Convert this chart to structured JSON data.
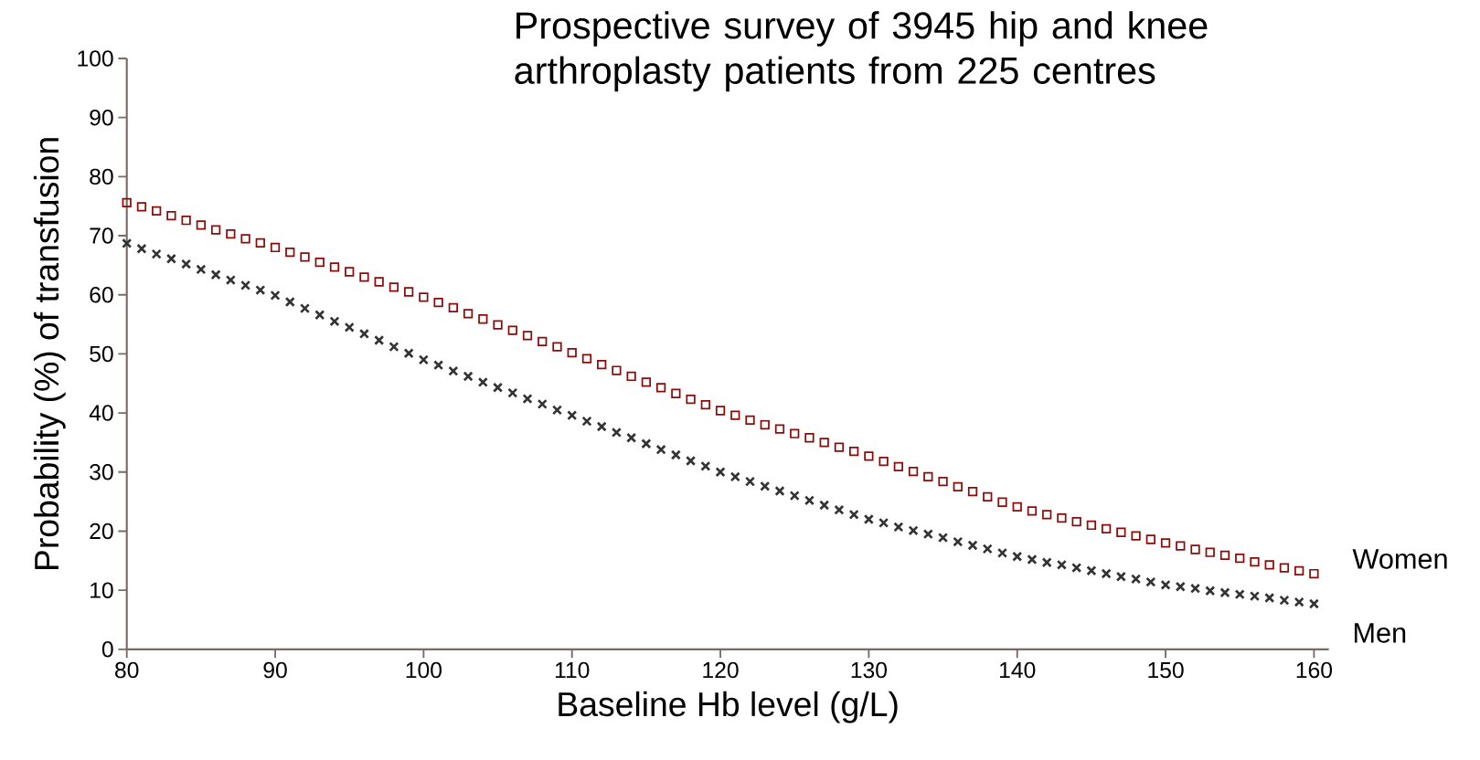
{
  "chart_data": {
    "type": "scatter",
    "title": "Prospective survey of 3945 hip and knee arthroplasty patients from 225 centres",
    "xlabel": "Baseline Hb level (g/L)",
    "ylabel": "Probability (%) of transfusion",
    "x": [
      80,
      81,
      82,
      83,
      84,
      85,
      86,
      87,
      88,
      89,
      90,
      91,
      92,
      93,
      94,
      95,
      96,
      97,
      98,
      99,
      100,
      101,
      102,
      103,
      104,
      105,
      106,
      107,
      108,
      109,
      110,
      111,
      112,
      113,
      114,
      115,
      116,
      117,
      118,
      119,
      120,
      121,
      122,
      123,
      124,
      125,
      126,
      127,
      128,
      129,
      130,
      131,
      132,
      133,
      134,
      135,
      136,
      137,
      138,
      139,
      140,
      141,
      142,
      143,
      144,
      145,
      146,
      147,
      148,
      149,
      150,
      151,
      152,
      153,
      154,
      155,
      156,
      157,
      158,
      159,
      160
    ],
    "series": [
      {
        "name": "Women",
        "color": "#8b0a0a",
        "marker": "square",
        "values": [
          75.6,
          74.9,
          74.2,
          73.4,
          72.6,
          71.8,
          71.0,
          70.3,
          69.5,
          68.8,
          68.0,
          67.2,
          66.4,
          65.5,
          64.7,
          63.9,
          63.0,
          62.2,
          61.3,
          60.5,
          59.6,
          58.7,
          57.8,
          56.8,
          55.9,
          54.9,
          54.0,
          53.1,
          52.1,
          51.2,
          50.2,
          49.2,
          48.2,
          47.2,
          46.2,
          45.2,
          44.3,
          43.3,
          42.3,
          41.4,
          40.4,
          39.6,
          38.8,
          38.0,
          37.3,
          36.5,
          35.8,
          35.0,
          34.2,
          33.5,
          32.7,
          31.8,
          30.9,
          30.1,
          29.2,
          28.4,
          27.5,
          26.7,
          25.8,
          24.9,
          24.1,
          23.4,
          22.8,
          22.2,
          21.6,
          21.0,
          20.4,
          19.8,
          19.2,
          18.6,
          18.0,
          17.5,
          16.9,
          16.4,
          15.9,
          15.4,
          14.8,
          14.3,
          13.8,
          13.3,
          12.8
        ]
      },
      {
        "name": "Men",
        "color": "#333333",
        "marker": "cross",
        "values": [
          68.7,
          67.8,
          66.9,
          66.1,
          65.2,
          64.3,
          63.4,
          62.5,
          61.6,
          60.8,
          59.9,
          58.8,
          57.7,
          56.6,
          55.5,
          54.5,
          53.4,
          52.3,
          51.2,
          50.1,
          49.0,
          48.1,
          47.1,
          46.2,
          45.2,
          44.3,
          43.4,
          42.4,
          41.5,
          40.5,
          39.6,
          38.6,
          37.7,
          36.7,
          35.8,
          34.8,
          33.8,
          32.9,
          31.9,
          31.0,
          30.0,
          29.2,
          28.4,
          27.6,
          26.8,
          26.0,
          25.2,
          24.4,
          23.6,
          22.8,
          22.0,
          21.4,
          20.7,
          20.1,
          19.5,
          18.9,
          18.2,
          17.6,
          17.0,
          16.3,
          15.7,
          15.2,
          14.7,
          14.3,
          13.8,
          13.3,
          12.8,
          12.3,
          11.9,
          11.4,
          10.9,
          10.6,
          10.3,
          9.9,
          9.6,
          9.3,
          9.0,
          8.7,
          8.3,
          8.0,
          7.7
        ]
      }
    ],
    "xlim": [
      80,
      161
    ],
    "ylim": [
      0,
      100
    ],
    "xticks": [
      80,
      90,
      100,
      110,
      120,
      130,
      140,
      150,
      160
    ],
    "yticks": [
      0,
      10,
      20,
      30,
      40,
      50,
      60,
      70,
      80,
      90,
      100
    ]
  }
}
